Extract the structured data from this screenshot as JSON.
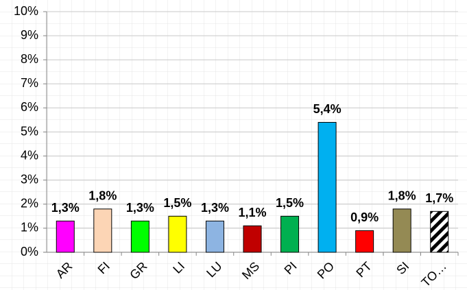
{
  "chart_data": {
    "type": "bar",
    "categories": [
      "AR",
      "FI",
      "GR",
      "LI",
      "LU",
      "MS",
      "PI",
      "PO",
      "PT",
      "SI",
      "TO…"
    ],
    "values": [
      1.3,
      1.8,
      1.3,
      1.5,
      1.3,
      1.1,
      1.5,
      5.4,
      0.9,
      1.8,
      1.7
    ],
    "value_labels": [
      "1,3%",
      "1,8%",
      "1,3%",
      "1,5%",
      "1,3%",
      "1,1%",
      "1,5%",
      "5,4%",
      "0,9%",
      "1,8%",
      "1,7%"
    ],
    "colors": [
      "#ff00ff",
      "#fcd5b5",
      "#00ff00",
      "#ffff00",
      "#8db4e2",
      "#c00000",
      "#00b050",
      "#00b0f0",
      "#ff0000",
      "#948a54",
      "#000000"
    ],
    "patterns": [
      null,
      null,
      null,
      null,
      null,
      null,
      null,
      null,
      null,
      null,
      "diagonal"
    ],
    "ylim": [
      0,
      10
    ],
    "yticks": [
      {
        "value": 0,
        "label": "0%"
      },
      {
        "value": 1,
        "label": "1%"
      },
      {
        "value": 2,
        "label": "2%"
      },
      {
        "value": 3,
        "label": "3%"
      },
      {
        "value": 4,
        "label": "4%"
      },
      {
        "value": 5,
        "label": "5%"
      },
      {
        "value": 6,
        "label": "6%"
      },
      {
        "value": 7,
        "label": "7%"
      },
      {
        "value": 8,
        "label": "8%"
      },
      {
        "value": 9,
        "label": "9%"
      },
      {
        "value": 10,
        "label": "10%"
      }
    ],
    "grid": true
  }
}
